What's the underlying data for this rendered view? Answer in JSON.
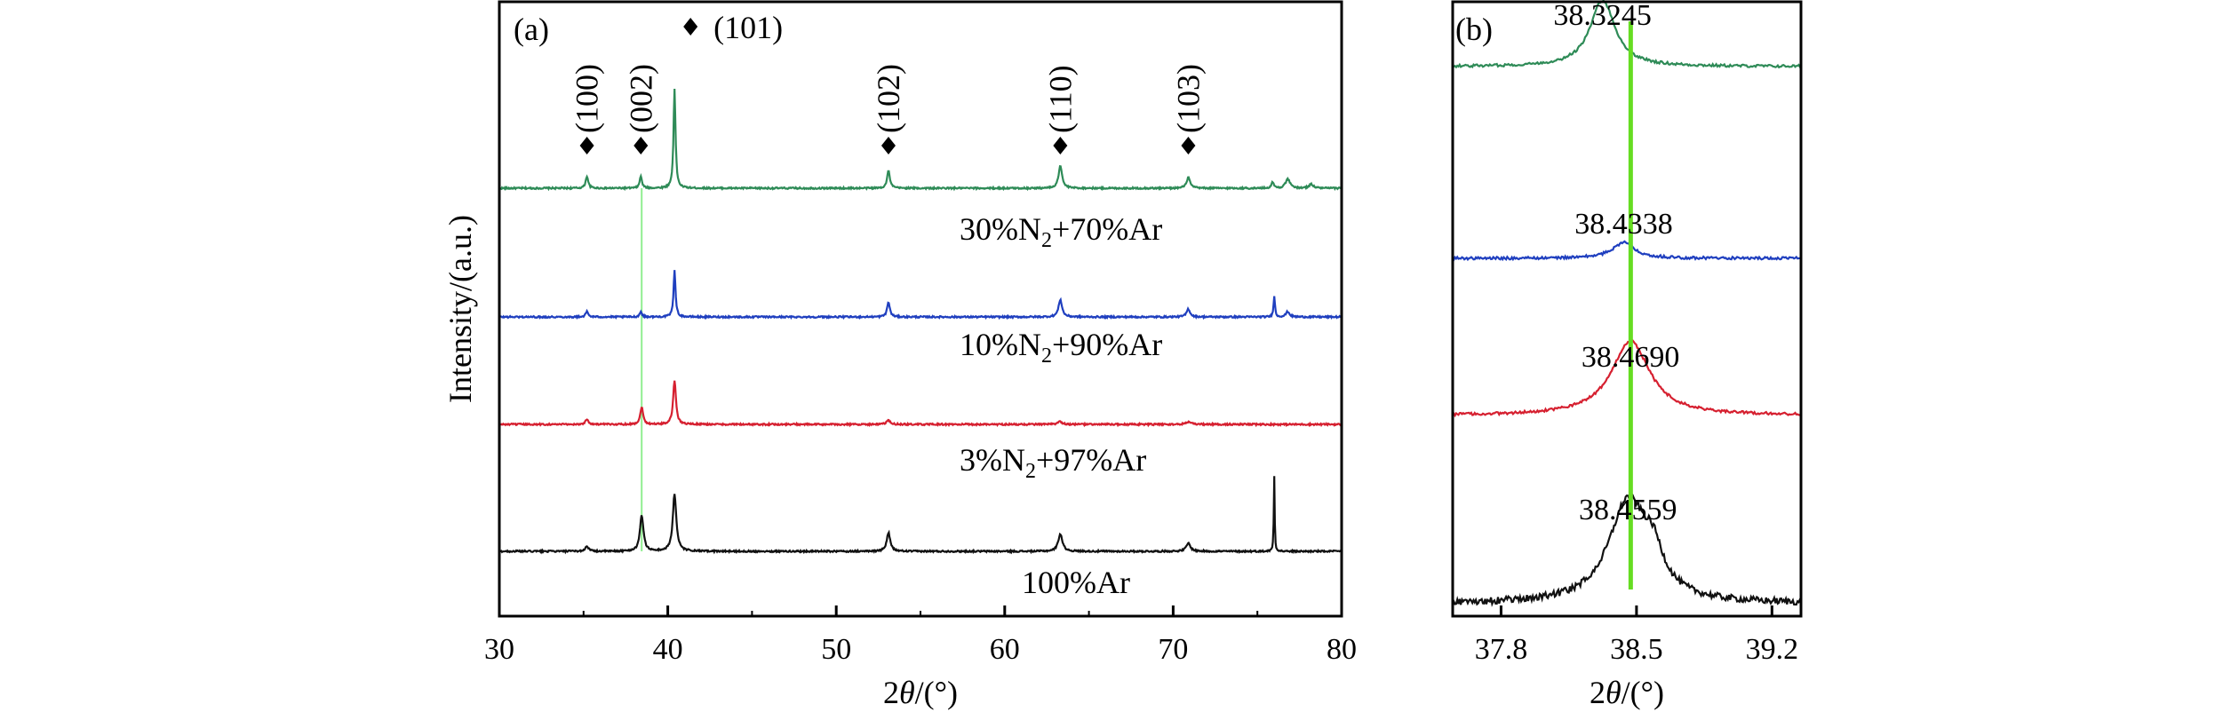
{
  "chart_data": [
    {
      "panel": "(a)",
      "type": "line",
      "xlabel_parts": [
        "2",
        "θ",
        "/(°)"
      ],
      "ylabel": "Intensity/(a.u.)",
      "xlim": [
        30,
        80
      ],
      "xticks": [
        "30",
        "40",
        "50",
        "60",
        "70",
        "80"
      ],
      "y_ticks_shown": false,
      "grid": false,
      "reference_line_x": 38.45,
      "peak_labels": [
        {
          "hkl": "(100)",
          "x": 35.2,
          "marker": "diamond"
        },
        {
          "hkl": "(002)",
          "x": 38.4,
          "marker": "diamond"
        },
        {
          "hkl": "(101)",
          "x": 40.4,
          "marker": "diamond"
        },
        {
          "hkl": "(102)",
          "x": 53.1,
          "marker": "diamond"
        },
        {
          "hkl": "(110)",
          "x": 63.3,
          "marker": "diamond"
        },
        {
          "hkl": "(103)",
          "x": 70.9,
          "marker": "diamond"
        }
      ],
      "series": [
        {
          "name_parts": [
            "30%N",
            "2",
            "+70%Ar"
          ],
          "color": "#2e8b57",
          "offset": 3.0,
          "peaks": [
            [
              35.2,
              0.09,
              0.18
            ],
            [
              38.4,
              0.09,
              0.16
            ],
            [
              40.4,
              0.75,
              0.14
            ],
            [
              53.1,
              0.13,
              0.2
            ],
            [
              63.3,
              0.17,
              0.25
            ],
            [
              70.9,
              0.08,
              0.25
            ],
            [
              75.9,
              0.05,
              0.15
            ],
            [
              76.8,
              0.07,
              0.3
            ],
            [
              78.2,
              0.03,
              0.3
            ]
          ]
        },
        {
          "name_parts": [
            "10%N",
            "2",
            "+90%Ar"
          ],
          "color": "#1f3fbf",
          "offset": 2.0,
          "peaks": [
            [
              35.2,
              0.04,
              0.18
            ],
            [
              38.4,
              0.04,
              0.16
            ],
            [
              40.4,
              0.35,
              0.14
            ],
            [
              53.1,
              0.11,
              0.2
            ],
            [
              63.3,
              0.13,
              0.25
            ],
            [
              70.9,
              0.06,
              0.25
            ],
            [
              76.0,
              0.16,
              0.1
            ],
            [
              76.8,
              0.04,
              0.25
            ]
          ]
        },
        {
          "name_parts": [
            "3%N",
            "2",
            "+97%Ar"
          ],
          "color": "#d62030",
          "offset": 1.0,
          "peaks": [
            [
              35.2,
              0.04,
              0.2
            ],
            [
              38.45,
              0.13,
              0.2
            ],
            [
              40.4,
              0.33,
              0.2
            ],
            [
              53.1,
              0.03,
              0.25
            ],
            [
              63.3,
              0.02,
              0.3
            ],
            [
              70.9,
              0.02,
              0.3
            ]
          ]
        },
        {
          "name_parts": [
            "100%Ar"
          ],
          "color": "#111111",
          "offset": 0.0,
          "peaks": [
            [
              35.2,
              0.04,
              0.22
            ],
            [
              38.45,
              0.27,
              0.25
            ],
            [
              40.4,
              0.43,
              0.25
            ],
            [
              53.1,
              0.14,
              0.25
            ],
            [
              63.3,
              0.13,
              0.3
            ],
            [
              70.9,
              0.06,
              0.3
            ],
            [
              76.0,
              0.57,
              0.06
            ]
          ]
        }
      ]
    },
    {
      "panel": "(b)",
      "type": "line",
      "xlabel_parts": [
        "2",
        "θ",
        "/(°)"
      ],
      "xlim": [
        37.55,
        39.35
      ],
      "xticks": [
        "37.8",
        "38.5",
        "39.2"
      ],
      "xtick_values": [
        37.8,
        38.5,
        39.2
      ],
      "y_ticks_shown": false,
      "grid": false,
      "reference_line_x": 38.47,
      "series": [
        {
          "color": "#2e8b57",
          "peak_value": "38.3245",
          "peak_x": 38.3245,
          "offset": 3.5,
          "height": 0.25,
          "width": 0.11
        },
        {
          "color": "#1f3fbf",
          "peak_value": "38.4338",
          "peak_x": 38.4338,
          "offset": 2.5,
          "height": 0.06,
          "width": 0.1
        },
        {
          "color": "#d62030",
          "peak_value": "38.4690",
          "peak_x": 38.469,
          "offset": 1.5,
          "height": 0.28,
          "width": 0.17
        },
        {
          "color": "#111111",
          "peak_value": "38.4559",
          "peak_x": 38.4559,
          "offset": 0.5,
          "height": 0.38,
          "width": 0.17
        }
      ]
    }
  ],
  "colors": {
    "reference_line_a": "#90ee90",
    "reference_line_b": "#66dd22",
    "frame": "#000000"
  }
}
